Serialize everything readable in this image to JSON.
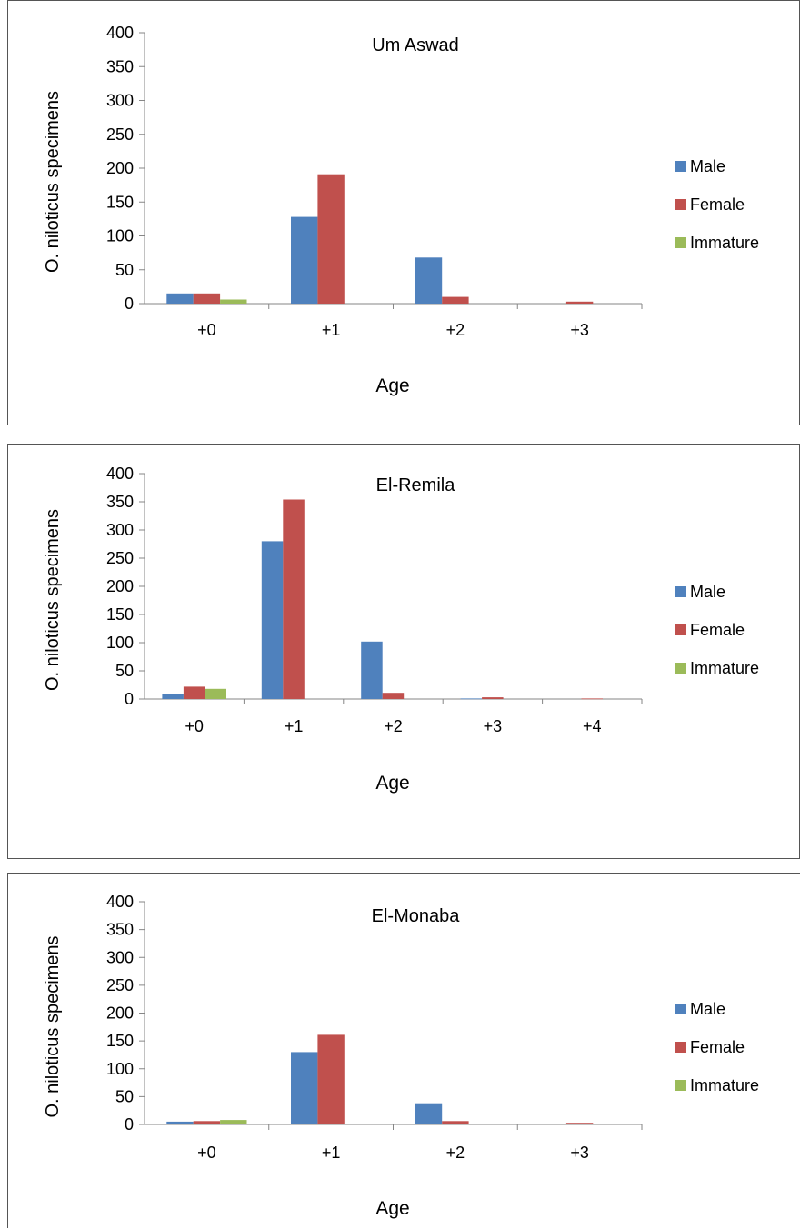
{
  "colors": {
    "Male": "#4f81bd",
    "Female": "#c0504d",
    "Immature": "#9bbb59",
    "axis": "#868686"
  },
  "chart_data": [
    {
      "type": "bar",
      "title": "Um Aswad",
      "xlabel": "Age",
      "ylabel": "O. niloticus  specimens",
      "ylim": [
        0,
        400
      ],
      "yticks": [
        "400",
        "350",
        "300",
        "250",
        "200",
        "150",
        "100",
        "50",
        "0"
      ],
      "categories": [
        "+0",
        "+1",
        "+2",
        "+3"
      ],
      "legend_position": "right",
      "grid": false,
      "series": [
        {
          "name": "Male",
          "values": [
            15,
            128,
            68,
            0
          ]
        },
        {
          "name": "Female",
          "values": [
            15,
            191,
            10,
            3
          ]
        },
        {
          "name": "Immature",
          "values": [
            6,
            0,
            0,
            0
          ]
        }
      ]
    },
    {
      "type": "bar",
      "title": "El-Remila",
      "xlabel": "Age",
      "ylabel": "O. niloticus  specimens",
      "ylim": [
        0,
        400
      ],
      "yticks": [
        "400",
        "350",
        "300",
        "250",
        "200",
        "150",
        "100",
        "50",
        "0"
      ],
      "categories": [
        "+0",
        "+1",
        "+2",
        "+3",
        "+4"
      ],
      "legend_position": "right",
      "grid": false,
      "series": [
        {
          "name": "Male",
          "values": [
            9,
            280,
            102,
            1,
            0
          ]
        },
        {
          "name": "Female",
          "values": [
            22,
            354,
            11,
            3,
            1
          ]
        },
        {
          "name": "Immature",
          "values": [
            18,
            0,
            0,
            0,
            0
          ]
        }
      ]
    },
    {
      "type": "bar",
      "title": "El-Monaba",
      "xlabel": "Age",
      "ylabel": "O. niloticus  specimens",
      "ylim": [
        0,
        400
      ],
      "yticks": [
        "400",
        "350",
        "300",
        "250",
        "200",
        "150",
        "100",
        "50",
        "0"
      ],
      "categories": [
        "+0",
        "+1",
        "+2",
        "+3"
      ],
      "legend_position": "right",
      "grid": false,
      "series": [
        {
          "name": "Male",
          "values": [
            5,
            130,
            38,
            0
          ]
        },
        {
          "name": "Female",
          "values": [
            6,
            161,
            6,
            3
          ]
        },
        {
          "name": "Immature",
          "values": [
            8,
            0,
            0,
            0
          ]
        }
      ]
    }
  ]
}
